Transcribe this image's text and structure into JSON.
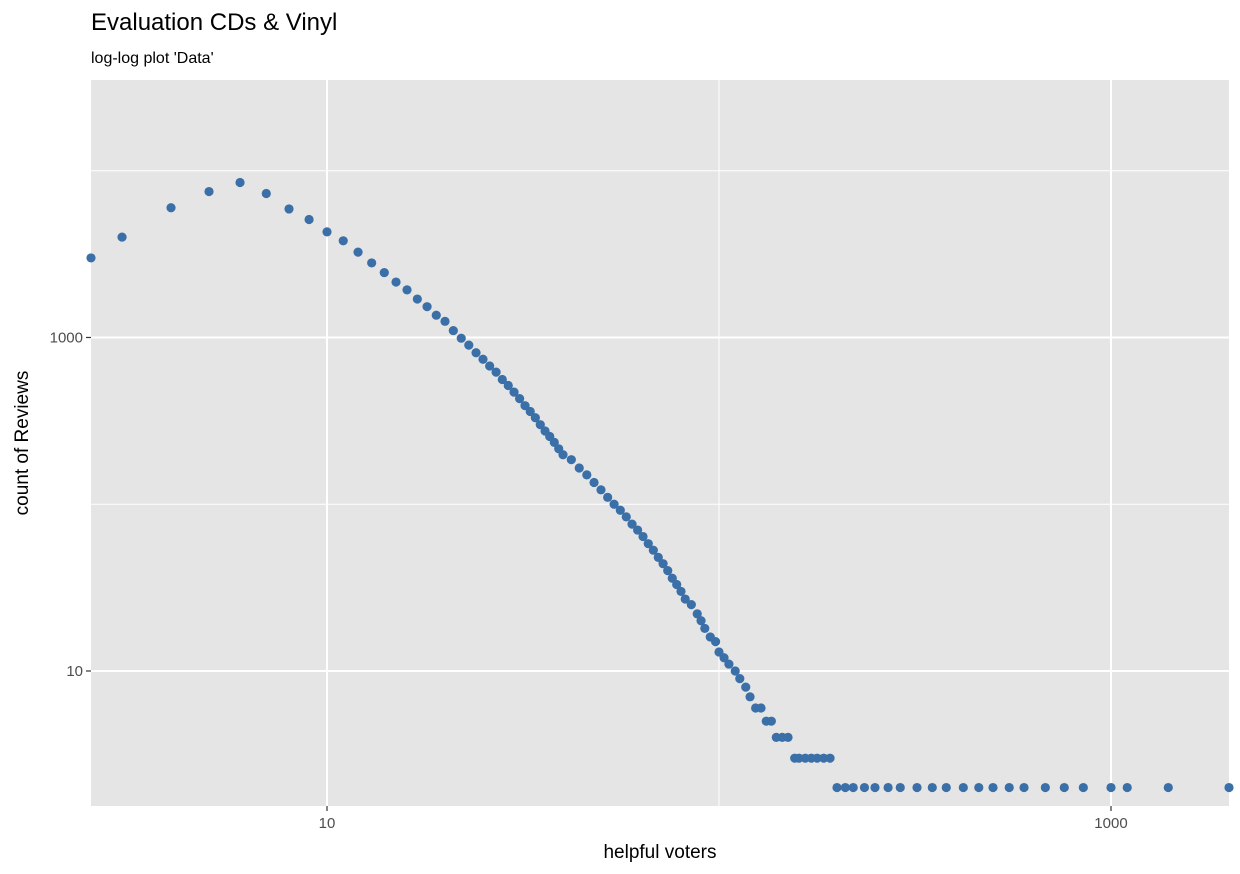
{
  "title": "Evaluation CDs & Vinyl",
  "subtitle": "log-log plot 'Data'",
  "chart_data": {
    "type": "scatter",
    "title": "Evaluation CDs & Vinyl",
    "subtitle": "log-log plot 'Data'",
    "xlabel": "helpful voters",
    "ylabel": "count of Reviews",
    "x_scale": "log10",
    "y_scale": "log10",
    "xlim": [
      2.5,
      2000
    ],
    "ylim": [
      1.55,
      35000
    ],
    "x_ticks": [
      10,
      1000
    ],
    "x_tick_labels": [
      "10",
      "1000"
    ],
    "y_ticks": [
      10,
      1000
    ],
    "y_tick_labels": [
      "10",
      "1000"
    ],
    "grid": true,
    "legend": "none",
    "point_color": "#3B6FA8",
    "panel_color": "#E5E5E5",
    "grid_color": "#FFFFFF",
    "x": [
      2.5,
      3,
      4,
      5,
      6,
      7,
      8,
      9,
      10,
      11,
      12,
      13,
      14,
      15,
      16,
      17,
      18,
      19,
      20,
      21,
      22,
      23,
      24,
      25,
      26,
      27,
      28,
      29,
      30,
      31,
      32,
      33,
      34,
      35,
      36,
      37,
      38,
      39,
      40,
      42,
      44,
      46,
      48,
      50,
      52,
      54,
      56,
      58,
      60,
      62,
      64,
      66,
      68,
      70,
      72,
      74,
      76,
      78,
      80,
      82,
      85,
      88,
      90,
      92,
      95,
      98,
      100,
      103,
      106,
      110,
      113,
      117,
      120,
      124,
      128,
      132,
      136,
      140,
      145,
      150,
      156,
      160,
      166,
      172,
      178,
      185,
      192,
      200,
      210,
      220,
      235,
      250,
      270,
      290,
      320,
      350,
      380,
      420,
      460,
      500,
      550,
      600,
      680,
      760,
      850,
      1000,
      1100,
      1400,
      2000
    ],
    "y": [
      3000,
      4000,
      6000,
      7500,
      8500,
      7300,
      5900,
      5100,
      4300,
      3800,
      3250,
      2800,
      2450,
      2150,
      1930,
      1700,
      1530,
      1360,
      1250,
      1100,
      990,
      900,
      810,
      740,
      675,
      620,
      560,
      515,
      470,
      430,
      390,
      360,
      330,
      300,
      275,
      255,
      235,
      215,
      198,
      185,
      165,
      150,
      135,
      122,
      110,
      100,
      92,
      84,
      76,
      70,
      64,
      58,
      53,
      48,
      44,
      40,
      36,
      33,
      30,
      27,
      25,
      22,
      20,
      18,
      16,
      15,
      13,
      12,
      11,
      10,
      9,
      8,
      7,
      6,
      6,
      5,
      5,
      4,
      4,
      4,
      3,
      3,
      3,
      3,
      3,
      3,
      3,
      2,
      2,
      2,
      2,
      2,
      2,
      2,
      2,
      2,
      2,
      2,
      2,
      2,
      2,
      2,
      2,
      2,
      2,
      2,
      2,
      2,
      2
    ]
  }
}
